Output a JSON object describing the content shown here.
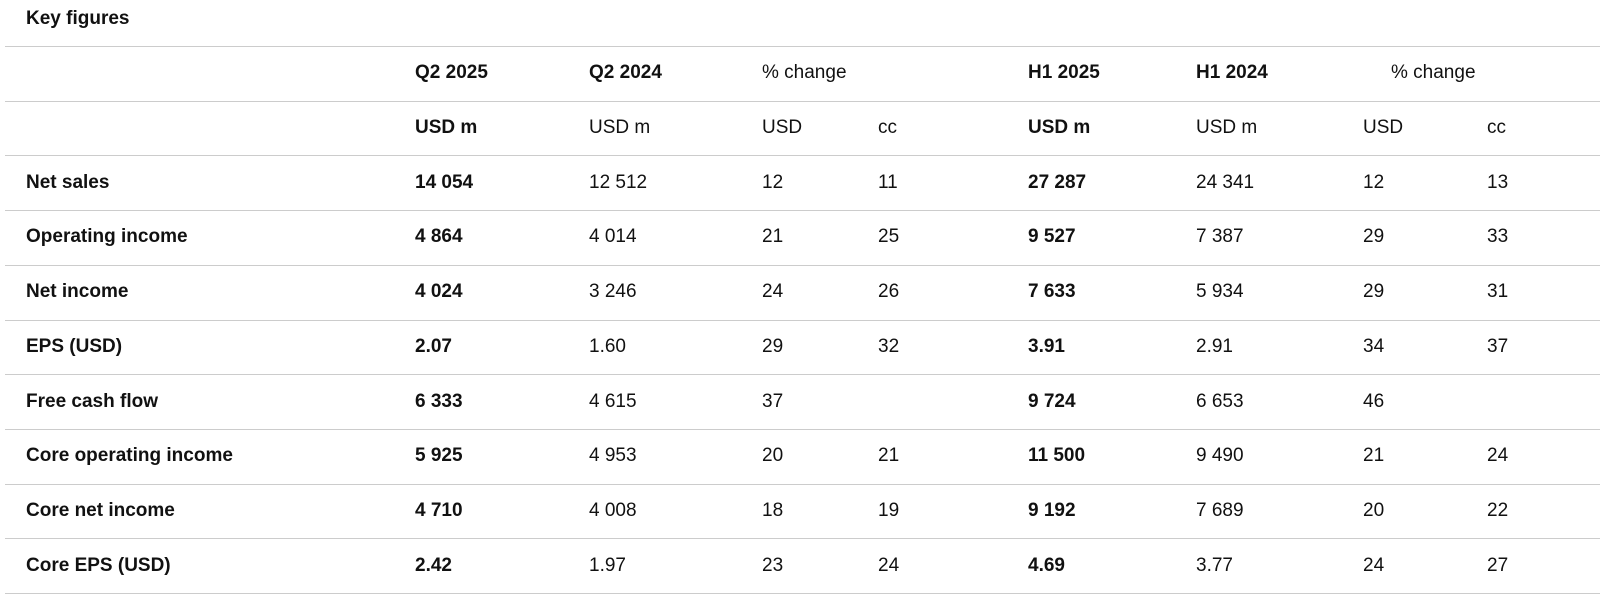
{
  "title": "Key figures",
  "table": {
    "header_top": [
      "Q2 2025",
      "Q2 2024",
      "% change",
      "H1 2025",
      "H1 2024",
      "% change"
    ],
    "header_units": [
      "USD m",
      "USD m",
      "USD",
      "cc",
      "USD m",
      "USD m",
      "USD",
      "cc"
    ],
    "rows": [
      [
        "Net sales",
        "14 054",
        "12 512",
        "12",
        "11",
        "27 287",
        "24 341",
        "12",
        "13"
      ],
      [
        "Operating income",
        "4 864",
        "4 014",
        "21",
        "25",
        "9 527",
        "7 387",
        "29",
        "33"
      ],
      [
        "Net income",
        "4 024",
        "3 246",
        "24",
        "26",
        "7 633",
        "5 934",
        "29",
        "31"
      ],
      [
        "EPS (USD)",
        "2.07",
        "1.60",
        "29",
        "32",
        "3.91",
        "2.91",
        "34",
        "37"
      ],
      [
        "Free cash flow",
        "6 333",
        "4 615",
        "37",
        null,
        "9 724",
        "6 653",
        "46",
        null
      ],
      [
        "Core operating income",
        "5 925",
        "4 953",
        "20",
        "21",
        "11 500",
        "9 490",
        "21",
        "24"
      ],
      [
        "Core net income",
        "4 710",
        "4 008",
        "18",
        "19",
        "9 192",
        "7 689",
        "20",
        "22"
      ],
      [
        "Core EPS (USD)",
        "2.42",
        "1.97",
        "23",
        "24",
        "4.69",
        "3.77",
        "24",
        "27"
      ]
    ]
  }
}
